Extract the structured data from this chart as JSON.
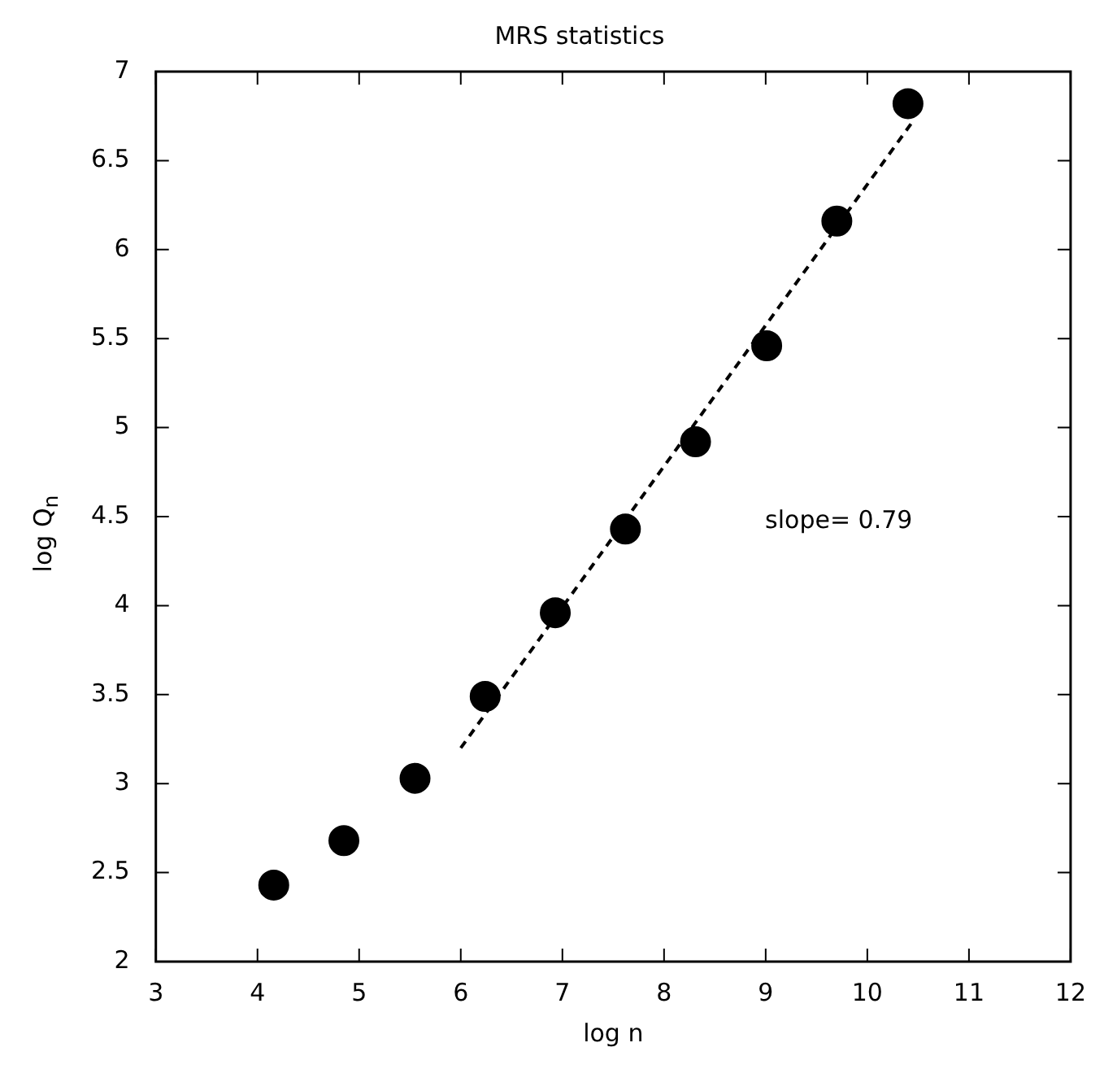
{
  "chart_data": {
    "type": "scatter",
    "title": "MRS statistics",
    "xlabel": "log n",
    "ylabel": "log Q$_{n}$",
    "xlim": [
      3,
      12
    ],
    "xticks": [
      3,
      4,
      5,
      6,
      7,
      8,
      9,
      10,
      11,
      12
    ],
    "ylim": [
      2,
      7
    ],
    "yticks": [
      2,
      2.5,
      3,
      3.5,
      4,
      4.5,
      5,
      5.5,
      6,
      6.5,
      7
    ],
    "marker": "circle",
    "annotations": [
      "slope= 0.79"
    ],
    "series": [
      {
        "color": "#000000",
        "x": [
          4.16,
          4.85,
          5.55,
          6.24,
          6.93,
          7.62,
          8.31,
          9.01,
          9.7,
          10.4
        ],
        "values": [
          2.43,
          2.68,
          3.03,
          3.49,
          3.96,
          4.43,
          4.92,
          5.46,
          6.16,
          6.82
        ]
      },
      {
        "type": "line",
        "color": "#000000",
        "line_style": "dashed",
        "marker": "none",
        "x": [
          6,
          10.46
        ],
        "values": [
          3.2,
          6.73
        ]
      }
    ]
  }
}
